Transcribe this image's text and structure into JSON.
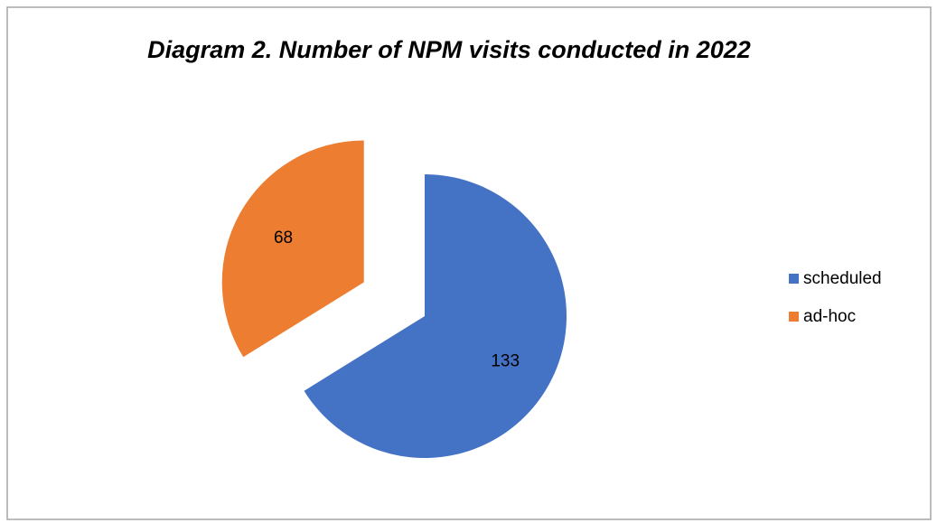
{
  "chart_data": {
    "type": "pie",
    "title": "Diagram 2. Number of NPM visits conducted in 2022",
    "categories": [
      "scheduled",
      "ad-hoc"
    ],
    "values": [
      133,
      68
    ],
    "colors": [
      "#4472c4",
      "#ed7d31"
    ],
    "legend": "right"
  }
}
